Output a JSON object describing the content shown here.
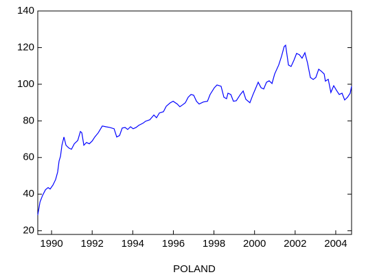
{
  "chart_data": {
    "type": "line",
    "x_label": "POLAND",
    "xlim": [
      1989.32,
      2004.78
    ],
    "xticks": [
      1990,
      1992,
      1994,
      1996,
      1998,
      2000,
      2002,
      2004
    ],
    "ylim": [
      18,
      140
    ],
    "yticks": [
      20,
      40,
      60,
      80,
      100,
      120,
      140
    ],
    "grid": false,
    "series": [
      {
        "color": "#0000ff",
        "x": [
          1989.32,
          1989.43,
          1989.56,
          1989.7,
          1989.83,
          1989.93,
          1990.07,
          1990.2,
          1990.3,
          1990.37,
          1990.44,
          1990.51,
          1990.61,
          1990.71,
          1990.85,
          1990.98,
          1991.12,
          1991.29,
          1991.42,
          1991.49,
          1991.59,
          1991.72,
          1991.86,
          1992.0,
          1992.13,
          1992.3,
          1992.5,
          1992.67,
          1992.87,
          1993.08,
          1993.21,
          1993.35,
          1993.48,
          1993.62,
          1993.75,
          1993.89,
          1994.02,
          1994.16,
          1994.3,
          1994.5,
          1994.63,
          1994.84,
          1995.04,
          1995.17,
          1995.31,
          1995.51,
          1995.65,
          1995.85,
          1995.99,
          1996.19,
          1996.32,
          1996.46,
          1996.59,
          1996.73,
          1996.87,
          1997.0,
          1997.14,
          1997.27,
          1997.47,
          1997.68,
          1997.81,
          1998.02,
          1998.15,
          1998.35,
          1998.49,
          1998.62,
          1998.69,
          1998.83,
          1998.96,
          1999.1,
          1999.3,
          1999.44,
          1999.57,
          1999.77,
          1999.91,
          2000.04,
          2000.18,
          2000.32,
          2000.45,
          2000.59,
          2000.72,
          2000.86,
          2000.99,
          2001.19,
          2001.33,
          2001.46,
          2001.53,
          2001.67,
          2001.8,
          2001.94,
          2002.07,
          2002.21,
          2002.34,
          2002.48,
          2002.61,
          2002.75,
          2002.89,
          2003.02,
          2003.16,
          2003.29,
          2003.43,
          2003.49,
          2003.63,
          2003.76,
          2003.9,
          2004.04,
          2004.17,
          2004.31,
          2004.44,
          2004.58,
          2004.71,
          2004.78
        ],
        "values": [
          28.6,
          35.7,
          39.4,
          42.4,
          43.6,
          42.8,
          45.0,
          48.0,
          52.1,
          58.1,
          60.7,
          66.7,
          71.2,
          66.7,
          65.2,
          64.5,
          67.5,
          69.3,
          74.2,
          73.5,
          66.7,
          68.2,
          67.5,
          69.0,
          71.2,
          73.5,
          77.2,
          76.8,
          76.4,
          75.7,
          71.2,
          72.0,
          76.1,
          76.4,
          75.3,
          76.8,
          75.7,
          76.4,
          77.6,
          78.7,
          79.8,
          80.6,
          83.2,
          81.7,
          84.3,
          85.0,
          88.0,
          89.9,
          90.7,
          89.2,
          87.7,
          88.8,
          89.9,
          92.9,
          94.4,
          94.0,
          90.7,
          89.2,
          90.3,
          90.7,
          94.4,
          98.1,
          99.6,
          98.9,
          92.9,
          92.1,
          95.1,
          94.4,
          90.7,
          91.0,
          94.4,
          96.3,
          91.8,
          89.9,
          94.0,
          97.4,
          101.1,
          98.1,
          97.4,
          101.1,
          101.9,
          100.4,
          105.6,
          110.5,
          115.3,
          120.6,
          121.3,
          110.5,
          109.7,
          113.1,
          116.8,
          116.1,
          114.2,
          117.2,
          111.6,
          103.7,
          102.6,
          103.7,
          108.2,
          107.1,
          105.6,
          101.7,
          102.7,
          95.5,
          99.2,
          96.6,
          94.4,
          95.1,
          91.4,
          92.9,
          95.1,
          98.9
        ]
      }
    ]
  }
}
